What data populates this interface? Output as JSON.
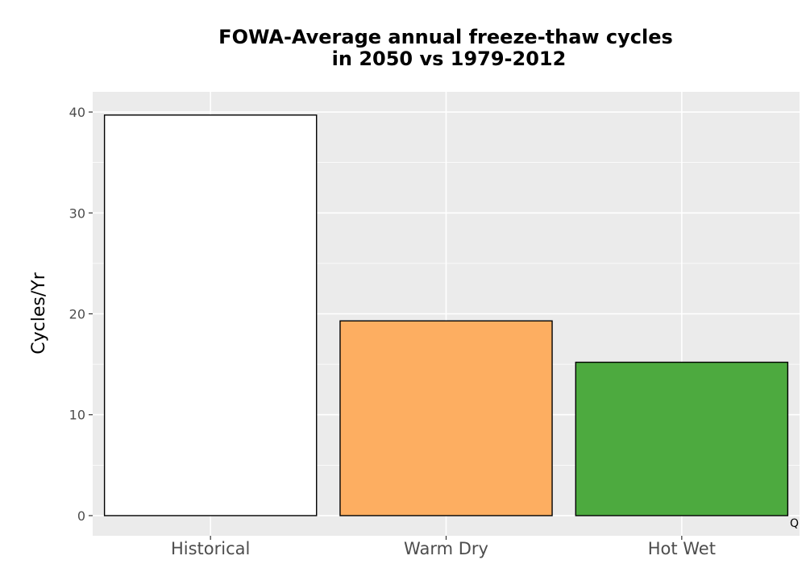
{
  "chart_data": {
    "type": "bar",
    "title_lines": [
      "FOWA-Average annual freeze-thaw cycles",
      "in 2050 vs 1979-2012"
    ],
    "xlabel": "",
    "ylabel": "Cycles/Yr",
    "categories": [
      "Historical",
      "Warm Dry",
      "Hot Wet"
    ],
    "values": [
      39.7,
      19.3,
      15.2
    ],
    "colors": [
      "#ffffff",
      "#fdae61",
      "#4daa3f"
    ],
    "ylim": [
      -2,
      42
    ],
    "yticks": [
      "0",
      "10",
      "20",
      "30",
      "40"
    ],
    "ytick_values": [
      0,
      10,
      20,
      30,
      40
    ],
    "grid": true,
    "panel_background": "#ebebeb",
    "gridline_color": "#ffffff",
    "bar_outline_color": "#000000",
    "corner_mark": "Q"
  }
}
